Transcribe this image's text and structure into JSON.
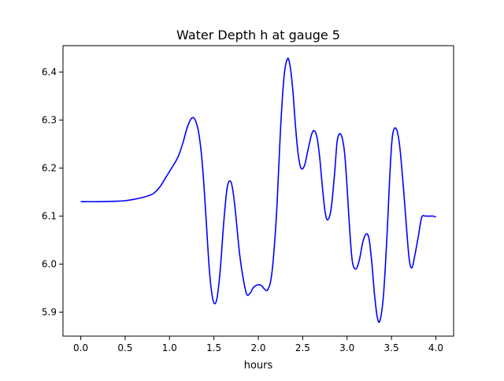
{
  "chart_data": {
    "type": "line",
    "title": "Water Depth h at gauge 5",
    "xlabel": "hours",
    "ylabel": "",
    "xlim": [
      -0.2,
      4.2
    ],
    "ylim": [
      5.85,
      6.455
    ],
    "x_ticks": [
      0.0,
      0.5,
      1.0,
      1.5,
      2.0,
      2.5,
      3.0,
      3.5,
      4.0
    ],
    "x_tick_labels": [
      "0.0",
      "0.5",
      "1.0",
      "1.5",
      "2.0",
      "2.5",
      "3.0",
      "3.5",
      "4.0"
    ],
    "y_ticks": [
      5.9,
      6.0,
      6.1,
      6.2,
      6.3,
      6.4
    ],
    "y_tick_labels": [
      "5.9",
      "6.0",
      "6.1",
      "6.2",
      "6.3",
      "6.4"
    ],
    "grid": false,
    "series": [
      {
        "color": "#0000ff",
        "x": [
          0.0,
          0.2,
          0.4,
          0.5,
          0.6,
          0.7,
          0.8,
          0.85,
          0.9,
          0.95,
          1.0,
          1.05,
          1.1,
          1.15,
          1.2,
          1.25,
          1.29,
          1.33,
          1.37,
          1.41,
          1.45,
          1.49,
          1.53,
          1.57,
          1.61,
          1.65,
          1.69,
          1.72,
          1.75,
          1.79,
          1.83,
          1.87,
          1.91,
          1.94,
          1.97,
          2.0,
          2.03,
          2.06,
          2.09,
          2.11,
          2.14,
          2.17,
          2.21,
          2.25,
          2.29,
          2.33,
          2.36,
          2.39,
          2.42,
          2.45,
          2.48,
          2.52,
          2.56,
          2.6,
          2.63,
          2.66,
          2.69,
          2.72,
          2.75,
          2.78,
          2.82,
          2.86,
          2.89,
          2.93,
          2.97,
          3.0,
          3.03,
          3.06,
          3.1,
          3.14,
          3.18,
          3.22,
          3.25,
          3.28,
          3.31,
          3.34,
          3.37,
          3.41,
          3.45,
          3.48,
          3.51,
          3.55,
          3.59,
          3.63,
          3.67,
          3.7,
          3.73,
          3.76,
          3.8,
          3.84,
          3.88,
          3.91,
          3.94,
          3.97,
          4.0
        ],
        "values": [
          6.13,
          6.13,
          6.131,
          6.132,
          6.135,
          6.139,
          6.145,
          6.152,
          6.163,
          6.178,
          6.193,
          6.208,
          6.225,
          6.252,
          6.285,
          6.304,
          6.3,
          6.272,
          6.208,
          6.1,
          5.985,
          5.925,
          5.925,
          5.985,
          6.085,
          6.16,
          6.172,
          6.145,
          6.095,
          6.02,
          5.97,
          5.937,
          5.94,
          5.95,
          5.955,
          5.957,
          5.956,
          5.95,
          5.945,
          5.948,
          5.965,
          6.012,
          6.12,
          6.28,
          6.39,
          6.428,
          6.41,
          6.36,
          6.285,
          6.228,
          6.2,
          6.205,
          6.238,
          6.27,
          6.278,
          6.265,
          6.225,
          6.165,
          6.112,
          6.092,
          6.115,
          6.19,
          6.258,
          6.27,
          6.235,
          6.16,
          6.07,
          6.005,
          5.99,
          6.01,
          6.048,
          6.063,
          6.05,
          6.0,
          5.935,
          5.89,
          5.882,
          5.935,
          6.06,
          6.18,
          6.265,
          6.283,
          6.25,
          6.17,
          6.075,
          6.01,
          5.992,
          6.015,
          6.055,
          6.097,
          6.1,
          6.1,
          6.1,
          6.1,
          6.098
        ]
      }
    ]
  }
}
